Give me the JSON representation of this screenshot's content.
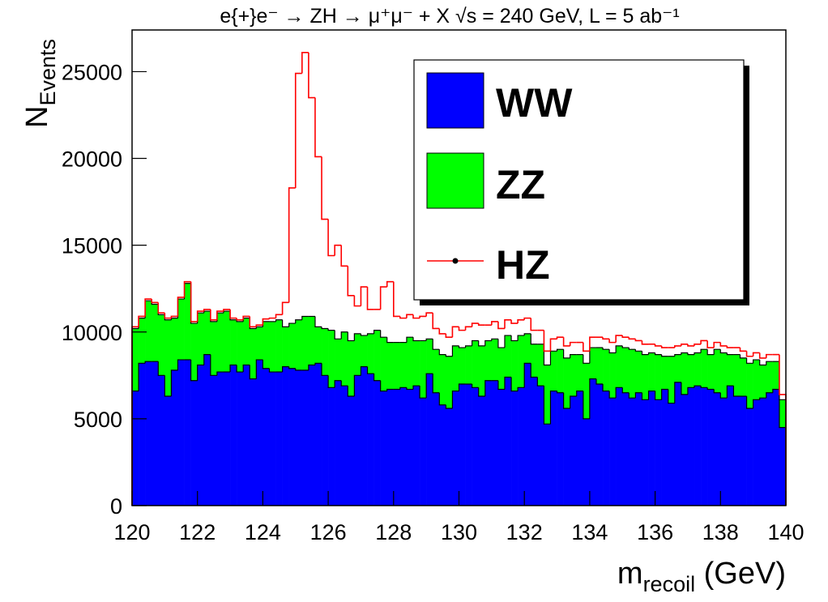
{
  "chart_data": {
    "type": "stacked-histogram",
    "title": "e{+}e⁻ → ZH → μ⁺μ⁻ + X  √s = 240 GeV, L = 5 ab⁻¹",
    "ylabel": "N",
    "ylabel_sub": "Events",
    "xlabel": "m",
    "xlabel_sub": "recoil",
    "xlabel_unit": " (GeV)",
    "legend": "top-right",
    "bins": [
      120,
      120.2,
      120.4,
      120.6,
      120.8,
      121,
      121.2,
      121.4,
      121.6,
      121.8,
      122,
      122.2,
      122.4,
      122.6,
      122.8,
      123,
      123.2,
      123.4,
      123.6,
      123.8,
      124,
      124.2,
      124.4,
      124.6,
      124.8,
      125,
      125.2,
      125.4,
      125.6,
      125.8,
      126,
      126.2,
      126.4,
      126.6,
      126.8,
      127,
      127.2,
      127.4,
      127.6,
      127.8,
      128,
      128.2,
      128.4,
      128.6,
      128.8,
      129,
      129.2,
      129.4,
      129.6,
      129.8,
      130,
      130.2,
      130.4,
      130.6,
      130.8,
      131,
      131.2,
      131.4,
      131.6,
      131.8,
      132,
      132.2,
      132.4,
      132.6,
      132.8,
      133,
      133.2,
      133.4,
      133.6,
      133.8,
      134,
      134.2,
      134.4,
      134.6,
      134.8,
      135,
      135.2,
      135.4,
      135.6,
      135.8,
      136,
      136.2,
      136.4,
      136.6,
      136.8,
      137,
      137.2,
      137.4,
      137.6,
      137.8,
      138,
      138.2,
      138.4,
      138.6,
      138.8,
      139,
      139.2,
      139.4,
      139.6,
      139.8,
      140
    ],
    "series": [
      {
        "name": "WW",
        "color": "#0000ff",
        "values": [
          6600,
          8200,
          8300,
          8300,
          7500,
          6300,
          7800,
          8400,
          8400,
          7200,
          8100,
          8700,
          7500,
          7700,
          7700,
          8100,
          7700,
          8100,
          7300,
          8400,
          7900,
          7700,
          7700,
          8000,
          7900,
          7800,
          7800,
          8100,
          8200,
          7500,
          6800,
          7200,
          6900,
          6300,
          7500,
          8000,
          7600,
          7200,
          6600,
          6700,
          6700,
          6800,
          6700,
          6900,
          6200,
          7600,
          6500,
          5800,
          5600,
          6600,
          7000,
          7000,
          6800,
          6300,
          7200,
          7200,
          6700,
          7400,
          6600,
          6800,
          8200,
          7400,
          6900,
          4700,
          6600,
          6500,
          5600,
          6300,
          6600,
          5000,
          7300,
          7000,
          6600,
          6200,
          6800,
          6500,
          6200,
          6500,
          6100,
          6600,
          6100,
          6700,
          5900,
          7100,
          6400,
          6800,
          6900,
          6800,
          6700,
          6500,
          6200,
          6900,
          6300,
          6300,
          5600,
          6100,
          6200,
          6500,
          6700,
          4500
        ]
      },
      {
        "name": "ZZ",
        "color": "#00ff00",
        "values": [
          3600,
          2600,
          3500,
          3300,
          3500,
          4400,
          3000,
          3500,
          4400,
          3300,
          3000,
          2500,
          3100,
          3400,
          3500,
          2600,
          2900,
          2700,
          2900,
          1900,
          2700,
          2900,
          3000,
          2300,
          2600,
          2900,
          3100,
          2800,
          2100,
          2700,
          3300,
          2400,
          3100,
          3200,
          2400,
          1800,
          2300,
          2900,
          3100,
          2700,
          2700,
          2600,
          3000,
          2600,
          3300,
          2000,
          2500,
          2900,
          3000,
          2600,
          2100,
          2200,
          2700,
          2900,
          2300,
          2400,
          2400,
          2400,
          2900,
          3000,
          1700,
          1900,
          2400,
          3400,
          2300,
          2500,
          2900,
          2400,
          2100,
          3200,
          1800,
          2100,
          2400,
          2600,
          2400,
          2600,
          2800,
          2400,
          2600,
          2200,
          2600,
          1900,
          2700,
          1600,
          2400,
          1900,
          1900,
          2200,
          2000,
          2500,
          2600,
          1800,
          2400,
          2200,
          2600,
          2300,
          1900,
          1800,
          1600,
          1600
        ]
      },
      {
        "name": "HZ",
        "color": "#ff0000",
        "values": [
          100,
          100,
          100,
          100,
          100,
          100,
          100,
          100,
          100,
          100,
          100,
          100,
          100,
          100,
          100,
          100,
          100,
          100,
          100,
          100,
          150,
          200,
          300,
          1400,
          7800,
          14200,
          15200,
          12600,
          9800,
          6300,
          4300,
          5400,
          3800,
          2600,
          1600,
          2800,
          1400,
          1200,
          2900,
          3500,
          1500,
          1400,
          1300,
          1300,
          1400,
          1500,
          1200,
          1200,
          1100,
          1100,
          1000,
          1100,
          1000,
          1200,
          900,
          1000,
          1100,
          900,
          1000,
          900,
          900,
          800,
          800,
          800,
          700,
          700,
          700,
          700,
          700,
          700,
          600,
          600,
          600,
          600,
          600,
          600,
          600,
          600,
          600,
          500,
          500,
          500,
          500,
          500,
          500,
          500,
          500,
          500,
          400,
          400,
          400,
          400,
          400,
          400,
          400,
          400,
          400,
          400,
          400,
          300
        ]
      }
    ],
    "xlim": [
      120,
      140
    ],
    "xticks": [
      120,
      122,
      124,
      126,
      128,
      130,
      132,
      134,
      136,
      138,
      140
    ],
    "ylim": [
      0,
      27400
    ],
    "yticks": [
      0,
      5000,
      10000,
      15000,
      20000,
      25000
    ]
  }
}
